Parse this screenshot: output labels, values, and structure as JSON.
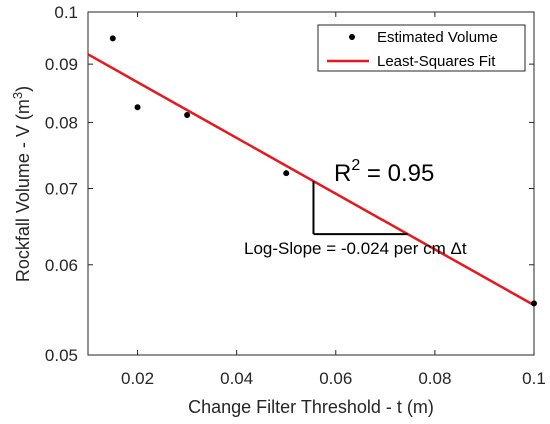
{
  "chart_data": {
    "type": "scatter",
    "xlabel": "Change Filter Threshold - t (m)",
    "ylabel": {
      "main": "Rockfall Volume - V (m",
      "sup": "3",
      "end": ")"
    },
    "xlim": [
      0.01,
      0.1
    ],
    "ylim": [
      0.05,
      0.1
    ],
    "yscale": "log",
    "xticks": [
      0.02,
      0.04,
      0.06,
      0.08,
      0.1
    ],
    "xtick_labels": [
      "0.02",
      "0.04",
      "0.06",
      "0.08",
      "0.1"
    ],
    "yticks": [
      0.05,
      0.06,
      0.07,
      0.08,
      0.09,
      0.1
    ],
    "ytick_labels": [
      "0.05",
      "0.06",
      "0.07",
      "0.08",
      "0.09",
      "0.1"
    ],
    "grid": false,
    "legend_position": "top-right",
    "series": [
      {
        "name": "Estimated Volume",
        "kind": "points",
        "color": "#000000",
        "x": [
          0.015,
          0.02,
          0.03,
          0.05,
          0.1
        ],
        "y": [
          0.0948,
          0.0825,
          0.0812,
          0.0722,
          0.0555
        ]
      },
      {
        "name": "Least-Squares Fit",
        "kind": "line",
        "color": "#e8171d",
        "x": [
          0.01,
          0.1
        ],
        "y": [
          0.0918,
          0.0553
        ]
      }
    ],
    "annotations": {
      "r2": {
        "base": "R",
        "sup": "2",
        "rest": " = 0.95"
      },
      "slope": "Log-Slope = -0.024 per cm Δt"
    }
  }
}
